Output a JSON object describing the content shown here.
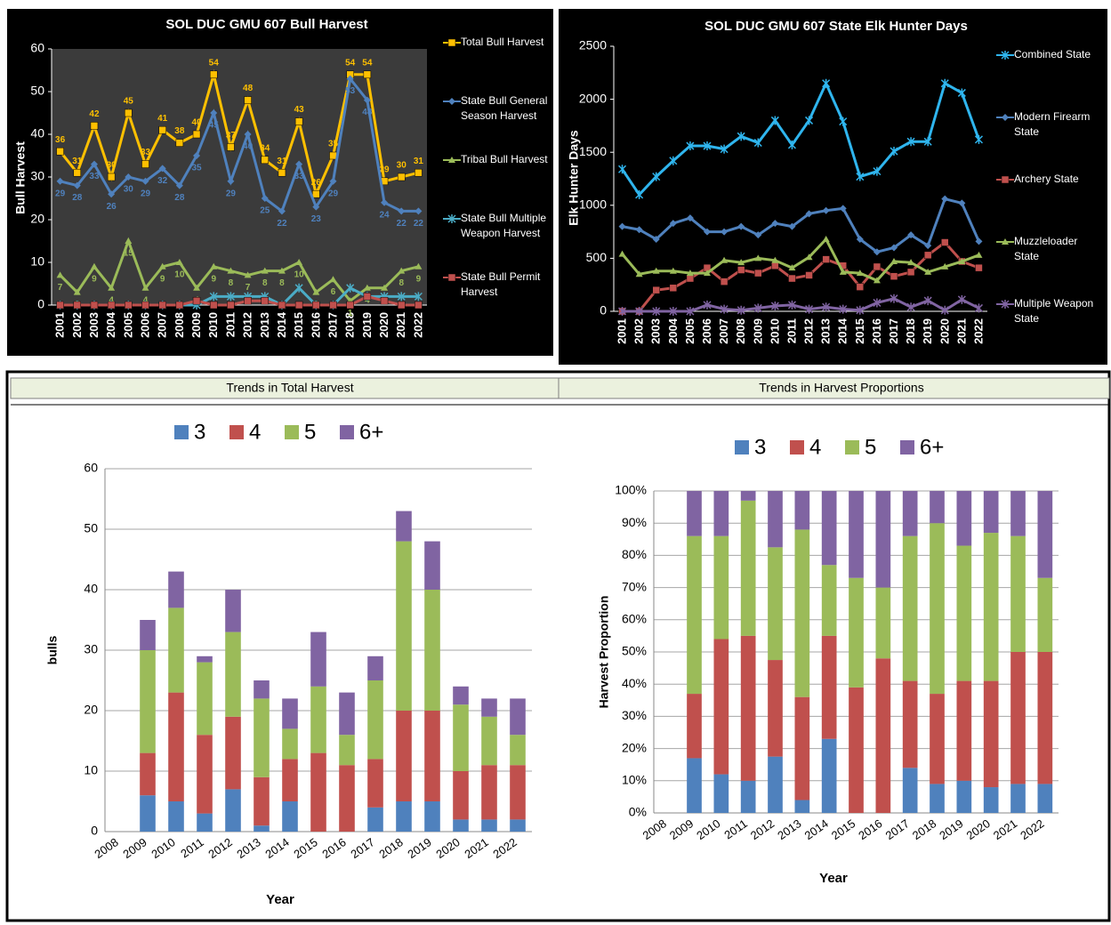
{
  "chart_data": [
    {
      "type": "line",
      "title": "SOL DUC  GMU 607 Bull Harvest",
      "y_label": "Bull Harvest",
      "categories": [
        "2001",
        "2002",
        "2003",
        "2004",
        "2005",
        "2006",
        "2007",
        "2008",
        "2009",
        "2010",
        "2011",
        "2012",
        "2013",
        "2014",
        "2015",
        "2016",
        "2017",
        "2018",
        "2019",
        "2020",
        "2021",
        "2022"
      ],
      "ylim": [
        0,
        60
      ],
      "yticks": [
        0,
        10,
        20,
        30,
        40,
        50,
        60
      ],
      "grid": false,
      "legend": "right",
      "series": [
        {
          "name": "Total Bull Harvest",
          "color": "#ffc000",
          "marker": "square",
          "data_labels": "above",
          "values": [
            36,
            31,
            42,
            30,
            45,
            33,
            41,
            38,
            40,
            54,
            37,
            48,
            34,
            31,
            43,
            26,
            35,
            54,
            54,
            29,
            30,
            31
          ]
        },
        {
          "name": "State Bull General Season Harvest",
          "color": "#4f81bd",
          "marker": "diamond",
          "data_labels": "below",
          "values": [
            29,
            28,
            33,
            26,
            30,
            29,
            32,
            28,
            35,
            45,
            29,
            40,
            25,
            22,
            33,
            23,
            29,
            53,
            48,
            24,
            22,
            22
          ]
        },
        {
          "name": "Tribal Bull Harvest",
          "color": "#9bbb59",
          "marker": "triangle",
          "data_labels": "below",
          "values": [
            7,
            3,
            9,
            4,
            15,
            4,
            9,
            10,
            4,
            9,
            8,
            7,
            8,
            8,
            10,
            3,
            6,
            1,
            4,
            4,
            8,
            9
          ]
        },
        {
          "name": "State Bull Multiple Weapon Harvest",
          "color": "#4bacc6",
          "marker": "star",
          "values": [
            0,
            0,
            0,
            0,
            0,
            0,
            0,
            0,
            0,
            2,
            2,
            2,
            2,
            0,
            4,
            0,
            0,
            4,
            2,
            2,
            2,
            2
          ]
        },
        {
          "name": "State Bull Permit Harvest",
          "color": "#c0504d",
          "marker": "square",
          "values": [
            0,
            0,
            0,
            0,
            0,
            0,
            0,
            0,
            1,
            0,
            0,
            1,
            1,
            0,
            0,
            0,
            0,
            0,
            2,
            1,
            0,
            0
          ]
        }
      ]
    },
    {
      "type": "line",
      "title": "SOL DUC  GMU 607 State Elk Hunter Days",
      "y_label": "Elk Hunter Days",
      "categories": [
        "2001",
        "2002",
        "2003",
        "2004",
        "2005",
        "2006",
        "2007",
        "2008",
        "2009",
        "2010",
        "2011",
        "2012",
        "2013",
        "2014",
        "2015",
        "2016",
        "2017",
        "2018",
        "2019",
        "2020",
        "2021",
        "2022"
      ],
      "ylim": [
        0,
        2500
      ],
      "yticks": [
        0,
        500,
        1000,
        1500,
        2000,
        2500
      ],
      "grid": false,
      "legend": "right",
      "series": [
        {
          "name": "Combined State",
          "color": "#2fb5ee",
          "marker": "star",
          "values": [
            1340,
            1100,
            1270,
            1420,
            1560,
            1560,
            1530,
            1650,
            1590,
            1800,
            1570,
            1800,
            2150,
            1790,
            1270,
            1320,
            1510,
            1600,
            1600,
            2150,
            2060,
            1620
          ]
        },
        {
          "name": "Modern Firearm State",
          "color": "#4f81bd",
          "marker": "diamond",
          "values": [
            800,
            770,
            680,
            830,
            880,
            750,
            750,
            800,
            720,
            830,
            800,
            920,
            950,
            970,
            680,
            560,
            600,
            720,
            620,
            1060,
            1020,
            660
          ]
        },
        {
          "name": "Archery State",
          "color": "#c0504d",
          "marker": "square",
          "values": [
            0,
            0,
            200,
            220,
            310,
            410,
            280,
            390,
            360,
            430,
            310,
            340,
            490,
            430,
            230,
            420,
            330,
            370,
            530,
            650,
            470,
            410
          ]
        },
        {
          "name": "Muzzleloader State",
          "color": "#9bbb59",
          "marker": "triangle",
          "values": [
            540,
            350,
            380,
            380,
            360,
            360,
            480,
            460,
            500,
            480,
            410,
            510,
            680,
            370,
            360,
            290,
            470,
            460,
            370,
            420,
            470,
            530
          ]
        },
        {
          "name": "Multiple Weapon State",
          "color": "#8064a2",
          "marker": "star",
          "values": [
            0,
            0,
            0,
            0,
            0,
            60,
            20,
            10,
            30,
            50,
            60,
            20,
            40,
            20,
            10,
            80,
            120,
            40,
            100,
            10,
            110,
            30
          ]
        }
      ]
    },
    {
      "type": "stacked_bar",
      "title": "Trends in Total Harvest",
      "y_label": "bulls",
      "x_label": "Year",
      "categories": [
        "2008",
        "2009",
        "2010",
        "2011",
        "2012",
        "2013",
        "2014",
        "2015",
        "2016",
        "2017",
        "2018",
        "2019",
        "2020",
        "2021",
        "2022"
      ],
      "ylim": [
        0,
        60
      ],
      "yticks": [
        0,
        10,
        20,
        30,
        40,
        50,
        60
      ],
      "grid": true,
      "legend": "top",
      "series": [
        {
          "name": "3",
          "color": "#4f81bd",
          "values": [
            0,
            6,
            5,
            3,
            7,
            1,
            5,
            0,
            0,
            4,
            5,
            5,
            2,
            2,
            2
          ]
        },
        {
          "name": "4",
          "color": "#c0504d",
          "values": [
            0,
            7,
            18,
            13,
            12,
            8,
            7,
            13,
            11,
            8,
            15,
            15,
            8,
            9,
            9
          ]
        },
        {
          "name": "5",
          "color": "#9bbb59",
          "values": [
            0,
            17,
            14,
            12,
            14,
            13,
            5,
            11,
            5,
            13,
            28,
            20,
            11,
            8,
            5
          ]
        },
        {
          "name": "6+",
          "color": "#8064a2",
          "values": [
            0,
            5,
            6,
            1,
            7,
            3,
            5,
            9,
            7,
            4,
            5,
            8,
            3,
            3,
            6
          ]
        }
      ]
    },
    {
      "type": "stacked_bar",
      "title": "Trends in Harvest Proportions",
      "y_label": "Harvest Proportion",
      "x_label": "Year",
      "categories": [
        "2008",
        "2009",
        "2010",
        "2011",
        "2012",
        "2013",
        "2014",
        "2015",
        "2016",
        "2017",
        "2018",
        "2019",
        "2020",
        "2021",
        "2022"
      ],
      "ylim": [
        0,
        100
      ],
      "grid": true,
      "legend": "top",
      "yticks": [
        {
          "value": 0,
          "label": "0%"
        },
        {
          "value": 10,
          "label": "10%"
        },
        {
          "value": 20,
          "label": "20%"
        },
        {
          "value": 30,
          "label": "30%"
        },
        {
          "value": 40,
          "label": "40%"
        },
        {
          "value": 50,
          "label": "50%"
        },
        {
          "value": 60,
          "label": "60%"
        },
        {
          "value": 70,
          "label": "70%"
        },
        {
          "value": 80,
          "label": "80%"
        },
        {
          "value": 90,
          "label": "90%"
        },
        {
          "value": 100,
          "label": "100%"
        }
      ],
      "series": [
        {
          "name": "3",
          "color": "#4f81bd",
          "values": [
            0,
            17,
            12,
            10,
            17.5,
            4,
            23,
            0,
            0,
            14,
            9,
            10,
            8,
            9,
            9
          ]
        },
        {
          "name": "4",
          "color": "#c0504d",
          "values": [
            0,
            20,
            42,
            45,
            30,
            32,
            32,
            39,
            48,
            27,
            28,
            31,
            33,
            41,
            41
          ]
        },
        {
          "name": "5",
          "color": "#9bbb59",
          "values": [
            0,
            49,
            32,
            42,
            35,
            52,
            22,
            34,
            22,
            45,
            53,
            42,
            46,
            36,
            23
          ]
        },
        {
          "name": "6+",
          "color": "#8064a2",
          "values": [
            0,
            14,
            14,
            3,
            17.5,
            12,
            23,
            27,
            30,
            14,
            10,
            17,
            13,
            14,
            27
          ]
        }
      ]
    }
  ]
}
